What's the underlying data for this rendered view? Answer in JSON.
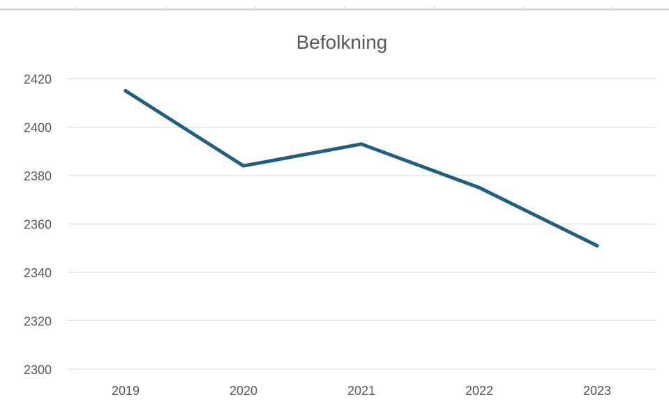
{
  "chart_data": {
    "type": "line",
    "title": "Befolkning",
    "xlabel": "",
    "ylabel": "",
    "categories": [
      "2019",
      "2020",
      "2021",
      "2022",
      "2023"
    ],
    "series": [
      {
        "values": [
          2415,
          2384,
          2393,
          2375,
          2351
        ]
      }
    ],
    "ylim": [
      2300,
      2420
    ],
    "yticks": [
      2300,
      2320,
      2340,
      2360,
      2380,
      2400,
      2420
    ],
    "grid": true,
    "legend": "none",
    "colors": {
      "line": "#1F5F7F",
      "grid": "#D9D9D9",
      "text": "#595959",
      "title": "#595959"
    }
  }
}
